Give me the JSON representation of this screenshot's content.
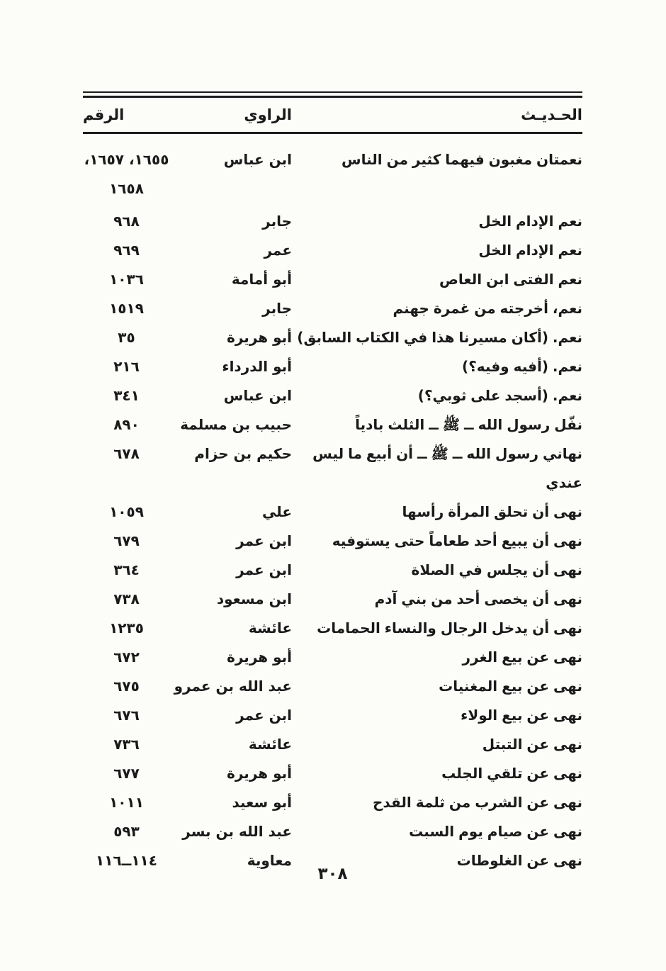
{
  "colors": {
    "ink": "#1a1a1a",
    "paper": "#fcfcf9"
  },
  "page": {
    "number_label": "٣٠٨"
  },
  "table": {
    "headers": {
      "hadith": "الحـديـث",
      "narrator": "الراوي",
      "number": "الرقم"
    },
    "rows": [
      {
        "hadith": "نعمتان مغبون فيهما كثير من الناس",
        "narrator": "ابن عباس",
        "number": "١٦٥٥، ١٦٥٧، ١٦٥٨"
      },
      {
        "hadith": "نعم الإدام الخل",
        "narrator": "جابر",
        "number": "٩٦٨"
      },
      {
        "hadith": "نعم الإدام الخل",
        "narrator": "عمر",
        "number": "٩٦٩"
      },
      {
        "hadith": "نعم الفتى ابن العاص",
        "narrator": "أبو أمامة",
        "number": "١٠٣٦"
      },
      {
        "hadith": "نعم، أخرجته من غمرة جهنم",
        "narrator": "جابر",
        "number": "١٥١٩"
      },
      {
        "hadith": "نعم. (أكان مسيرنا هذا في الكتاب السابق)",
        "narrator": "أبو هريرة",
        "number": "٣٥"
      },
      {
        "hadith": "نعم. (أفيه وفيه؟)",
        "narrator": "أبو الدرداء",
        "number": "٢١٦"
      },
      {
        "hadith": "نعم. (أسجد على ثوبي؟)",
        "narrator": "ابن عباس",
        "number": "٣٤١"
      },
      {
        "hadith": "نفّل رسول الله ــ ﷺ ــ الثلث بادياً",
        "narrator": "حبيب بن مسلمة",
        "number": "٨٩٠"
      },
      {
        "hadith": "نهاني رسول الله ــ ﷺ ــ أن أبيع ما ليس عندي",
        "narrator": "حكيم بن حزام",
        "number": "٦٧٨"
      },
      {
        "hadith": "نهى أن تحلق المرأة رأسها",
        "narrator": "علي",
        "number": "١٠٥٩"
      },
      {
        "hadith": "نهى أن يبيع أحد طعاماً حتى يستوفيه",
        "narrator": "ابن عمر",
        "number": "٦٧٩"
      },
      {
        "hadith": "نهى أن يجلس في الصلاة",
        "narrator": "ابن عمر",
        "number": "٣٦٤"
      },
      {
        "hadith": "نهى أن يخصى أحد من بني آدم",
        "narrator": "ابن مسعود",
        "number": "٧٣٨"
      },
      {
        "hadith": "نهى أن يدخل الرجال والنساء الحمامات",
        "narrator": "عائشة",
        "number": "١٢٣٥"
      },
      {
        "hadith": "نهى عن بيع الغرر",
        "narrator": "أبو هريرة",
        "number": "٦٧٢"
      },
      {
        "hadith": "نهى عن بيع المغنيات",
        "narrator": "عبد الله بن عمرو",
        "number": "٦٧٥"
      },
      {
        "hadith": "نهى عن بيع الولاء",
        "narrator": "ابن عمر",
        "number": "٦٧٦"
      },
      {
        "hadith": "نهى عن التبتل",
        "narrator": "عائشة",
        "number": "٧٣٦"
      },
      {
        "hadith": "نهى عن تلقي الجلب",
        "narrator": "أبو هريرة",
        "number": "٦٧٧"
      },
      {
        "hadith": "نهى عن الشرب من ثلمة القدح",
        "narrator": "أبو سعيد",
        "number": "١٠١١"
      },
      {
        "hadith": "نهى عن صيام يوم السبت",
        "narrator": "عبد الله بن بسر",
        "number": "٥٩٣"
      },
      {
        "hadith": "نهى عن الغلوطات",
        "narrator": "معاوية",
        "number": "١١٤ــ١١٦"
      }
    ]
  }
}
